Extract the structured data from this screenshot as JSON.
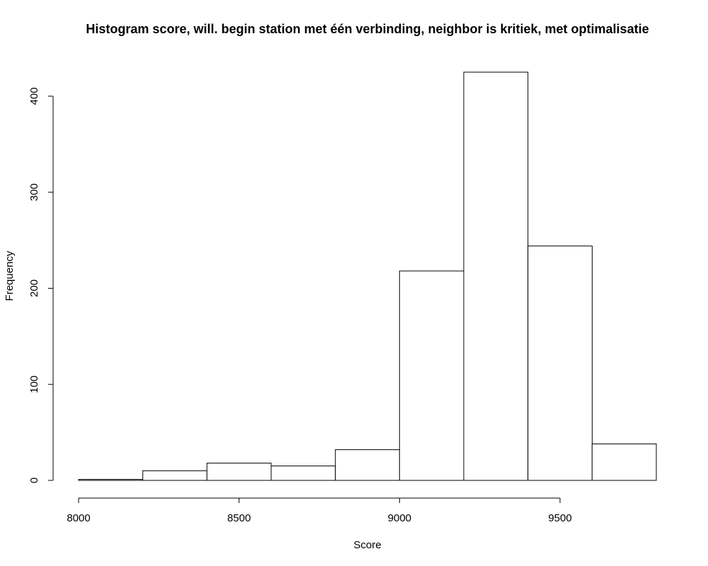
{
  "chart_data": {
    "type": "bar",
    "subtype": "histogram",
    "title": "Histogram score, will. begin station met één verbinding, neighbor is kritiek, met optimalisatie",
    "xlabel": "Score",
    "ylabel": "Frequency",
    "bins": [
      {
        "start": 8000,
        "end": 8200,
        "count": 1
      },
      {
        "start": 8200,
        "end": 8400,
        "count": 10
      },
      {
        "start": 8400,
        "end": 8600,
        "count": 18
      },
      {
        "start": 8600,
        "end": 8800,
        "count": 15
      },
      {
        "start": 8800,
        "end": 9000,
        "count": 32
      },
      {
        "start": 9000,
        "end": 9200,
        "count": 218
      },
      {
        "start": 9200,
        "end": 9400,
        "count": 425
      },
      {
        "start": 9400,
        "end": 9600,
        "count": 244
      },
      {
        "start": 9600,
        "end": 9800,
        "count": 38
      }
    ],
    "x_ticks": [
      "8000",
      "8500",
      "9000",
      "9500"
    ],
    "y_ticks": [
      "0",
      "100",
      "200",
      "300",
      "400"
    ],
    "xlim": [
      8000,
      9800
    ],
    "ylim": [
      0,
      425
    ],
    "grid": false,
    "legend": "none",
    "bar_fill": "#ffffff",
    "bar_stroke": "#000000"
  }
}
